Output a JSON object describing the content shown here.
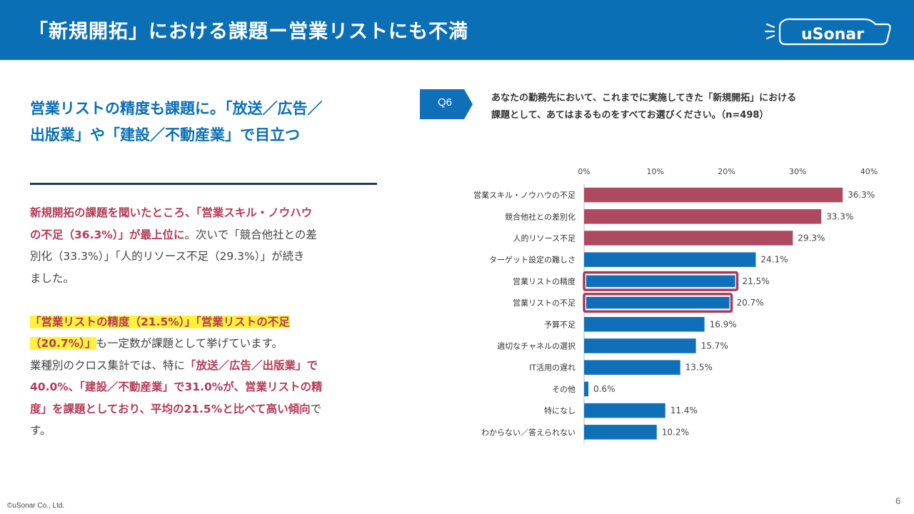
{
  "header": {
    "title": "「新規開拓」における課題ー営業リストにも不満",
    "logo_text": "uSonar"
  },
  "lead": {
    "line1": "営業リストの精度も課題に。「放送／広告／",
    "line2": "出版業」や「建設／不動産業」で目立つ"
  },
  "body": {
    "p1_l1_red": "新規開拓の課題を聞いたところ、「営業スキル・ノウハウ",
    "p1_l2_red": "の不足（36.3%）」が最上位に",
    "p1_l2_rest": "。次いで「競合他社との差",
    "p1_l3": "別化（33.3%）」「人的リソース不足（29.3%）」が続き",
    "p1_l4": "ました。",
    "p2_l1_hl": "「営業リストの精度（21.5%）」「営業リストの不足",
    "p2_l2_hl": "（20.7%）」",
    "p2_l2_rest": "も一定数が課題として挙げています。",
    "p2_l3_a": "業種別のクロス集計では、特に",
    "p2_l3_red": "「放送／広告／出版業」で",
    "p2_l4_red": "40.0%、「建設／不動産業」で31.0%が、営業リストの精",
    "p2_l5_red": "度」を課題としており、平均の21.5%と比べて高い傾向",
    "p2_l5_rest": "で",
    "p2_l6": "す。"
  },
  "question": {
    "badge": "Q6",
    "line1": "あなたの勤務先において、これまでに実施してきた「新規開拓」における",
    "line2": "課題として、あてはまるものをすべてお選びください。（n=498）"
  },
  "chart_data": {
    "type": "bar",
    "orientation": "horizontal",
    "x_ticks": [
      "0%",
      "10%",
      "20%",
      "30%",
      "40%"
    ],
    "xlim": [
      0,
      40
    ],
    "categories": [
      "営業スキル・ノウハウの不足",
      "競合他社との差別化",
      "人的リソース不足",
      "ターゲット設定の難しさ",
      "営業リストの精度",
      "営業リストの不足",
      "予算不足",
      "適切なチャネルの選択",
      "IT活用の遅れ",
      "その他",
      "特になし",
      "わからない／答えられない"
    ],
    "values": [
      36.3,
      33.3,
      29.3,
      24.1,
      21.5,
      20.7,
      16.9,
      15.7,
      13.5,
      0.6,
      11.4,
      10.2
    ],
    "labels": [
      "36.3%",
      "33.3%",
      "29.3%",
      "24.1%",
      "21.5%",
      "20.7%",
      "16.9%",
      "15.7%",
      "13.5%",
      "0.6%",
      "11.4%",
      "10.2%"
    ],
    "bar_colors": [
      "#ad4a62",
      "#ad4a62",
      "#ad4a62",
      "#0f6fb8",
      "#0f6fb8",
      "#0f6fb8",
      "#0f6fb8",
      "#0f6fb8",
      "#0f6fb8",
      "#0f6fb8",
      "#0f6fb8",
      "#0f6fb8"
    ],
    "highlighted": [
      "営業リストの精度",
      "営業リストの不足"
    ],
    "highlight_color": "#a63a5c"
  },
  "footer": {
    "copyright": "©uSonar Co., Ltd.",
    "page": "6"
  }
}
